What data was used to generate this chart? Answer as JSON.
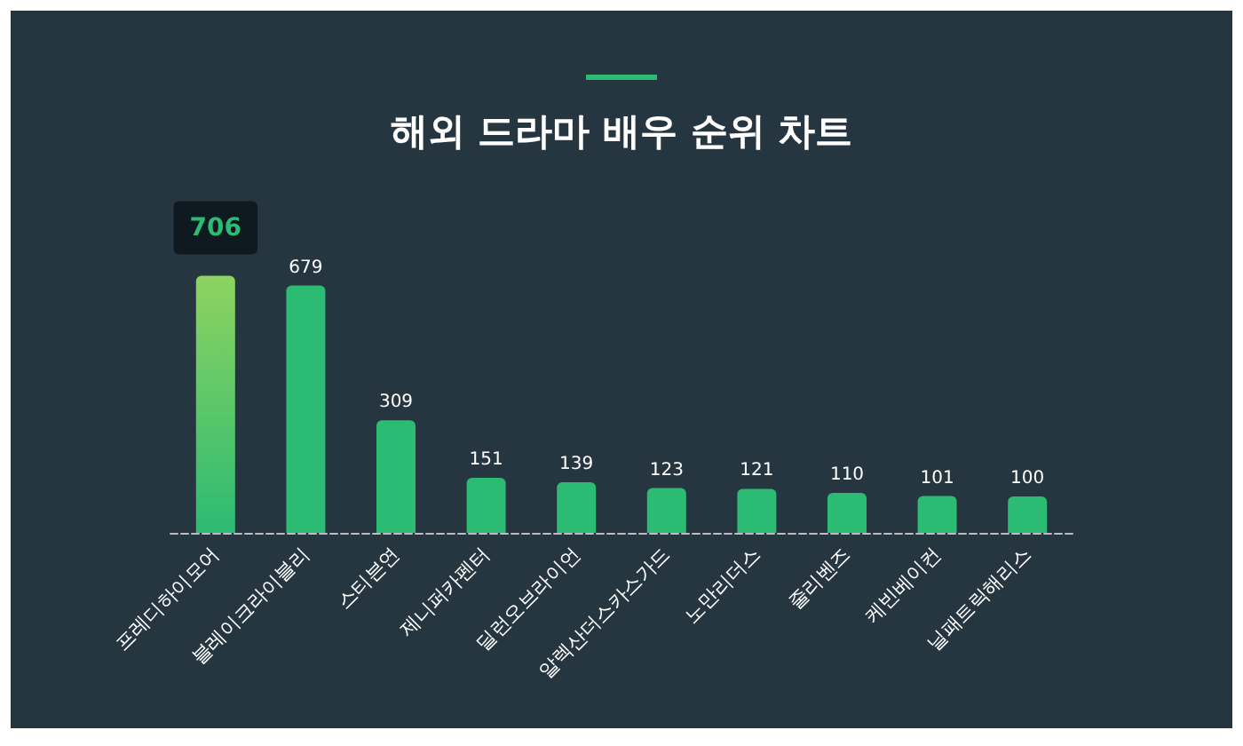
{
  "chart_data": {
    "type": "bar",
    "title": "해외 드라마 배우 순위 차트",
    "categories": [
      "프레디하이모어",
      "블레이크라이블리",
      "스티븐연",
      "제니퍼카펜터",
      "딜런오브라이언",
      "알렉산더스카스가드",
      "노만리더스",
      "줄리벤즈",
      "케빈베이컨",
      "닐패트릭해리스"
    ],
    "values": [
      706,
      679,
      309,
      151,
      139,
      123,
      121,
      110,
      101,
      100
    ],
    "colors": [
      "#8dd35f",
      "#2bbb73",
      "#2bbb73",
      "#2bbb73",
      "#2bbb73",
      "#2bbb73",
      "#2bbb73",
      "#2bbb73",
      "#2bbb73",
      "#2bbb73"
    ],
    "data_labels": true,
    "grid": false
  }
}
